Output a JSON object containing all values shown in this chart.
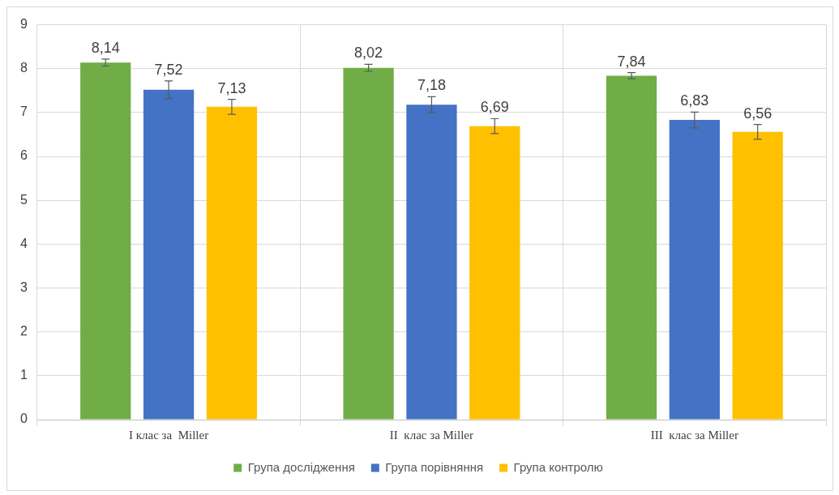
{
  "chart_data": {
    "type": "bar",
    "categories": [
      "I клас за  Miller",
      "II  клас за Miller",
      "III  клас за Miller"
    ],
    "series": [
      {
        "name": "Група дослідження",
        "color": "#70ad47",
        "values": [
          8.14,
          8.02,
          7.84
        ],
        "errors": [
          0.08,
          0.08,
          0.07
        ],
        "value_labels": [
          "8,14",
          "8,02",
          "7,84"
        ]
      },
      {
        "name": "Група порівняння",
        "color": "#4472c4",
        "values": [
          7.52,
          7.18,
          6.83
        ],
        "errors": [
          0.2,
          0.18,
          0.18
        ],
        "value_labels": [
          "7,52",
          "7,18",
          "6,83"
        ]
      },
      {
        "name": "Група контролю",
        "color": "#ffc000",
        "values": [
          7.13,
          6.69,
          6.56
        ],
        "errors": [
          0.17,
          0.17,
          0.17
        ],
        "value_labels": [
          "7,13",
          "6,69",
          "6,56"
        ]
      }
    ],
    "ylim": [
      0,
      9
    ],
    "yticks": [
      0,
      1,
      2,
      3,
      4,
      5,
      6,
      7,
      8,
      9
    ],
    "grid": true,
    "legend": "bottom"
  }
}
